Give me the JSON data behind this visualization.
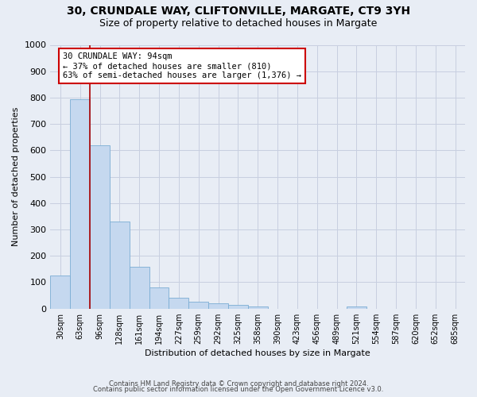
{
  "title_line1": "30, CRUNDALE WAY, CLIFTONVILLE, MARGATE, CT9 3YH",
  "title_line2": "Size of property relative to detached houses in Margate",
  "xlabel": "Distribution of detached houses by size in Margate",
  "ylabel": "Number of detached properties",
  "categories": [
    "30sqm",
    "63sqm",
    "96sqm",
    "128sqm",
    "161sqm",
    "194sqm",
    "227sqm",
    "259sqm",
    "292sqm",
    "325sqm",
    "358sqm",
    "390sqm",
    "423sqm",
    "456sqm",
    "489sqm",
    "521sqm",
    "554sqm",
    "587sqm",
    "620sqm",
    "652sqm",
    "685sqm"
  ],
  "values": [
    125,
    795,
    620,
    330,
    160,
    80,
    40,
    25,
    20,
    15,
    8,
    0,
    0,
    0,
    0,
    8,
    0,
    0,
    0,
    0,
    0
  ],
  "bar_color": "#c5d8ef",
  "bar_edge_color": "#7aadd4",
  "property_line_color": "#aa0000",
  "annotation_text": "30 CRUNDALE WAY: 94sqm\n← 37% of detached houses are smaller (810)\n63% of semi-detached houses are larger (1,376) →",
  "annotation_box_edgecolor": "#cc0000",
  "annotation_box_facecolor": "#ffffff",
  "ylim": [
    0,
    1000
  ],
  "yticks": [
    0,
    100,
    200,
    300,
    400,
    500,
    600,
    700,
    800,
    900,
    1000
  ],
  "footnote1": "Contains HM Land Registry data © Crown copyright and database right 2024.",
  "footnote2": "Contains public sector information licensed under the Open Government Licence v3.0.",
  "grid_color": "#c8cfe0",
  "background_color": "#e8edf5",
  "title_fontsize": 10,
  "subtitle_fontsize": 9,
  "tick_fontsize": 7,
  "ylabel_fontsize": 8,
  "xlabel_fontsize": 8,
  "annotation_fontsize": 7.5,
  "footnote_fontsize": 6
}
